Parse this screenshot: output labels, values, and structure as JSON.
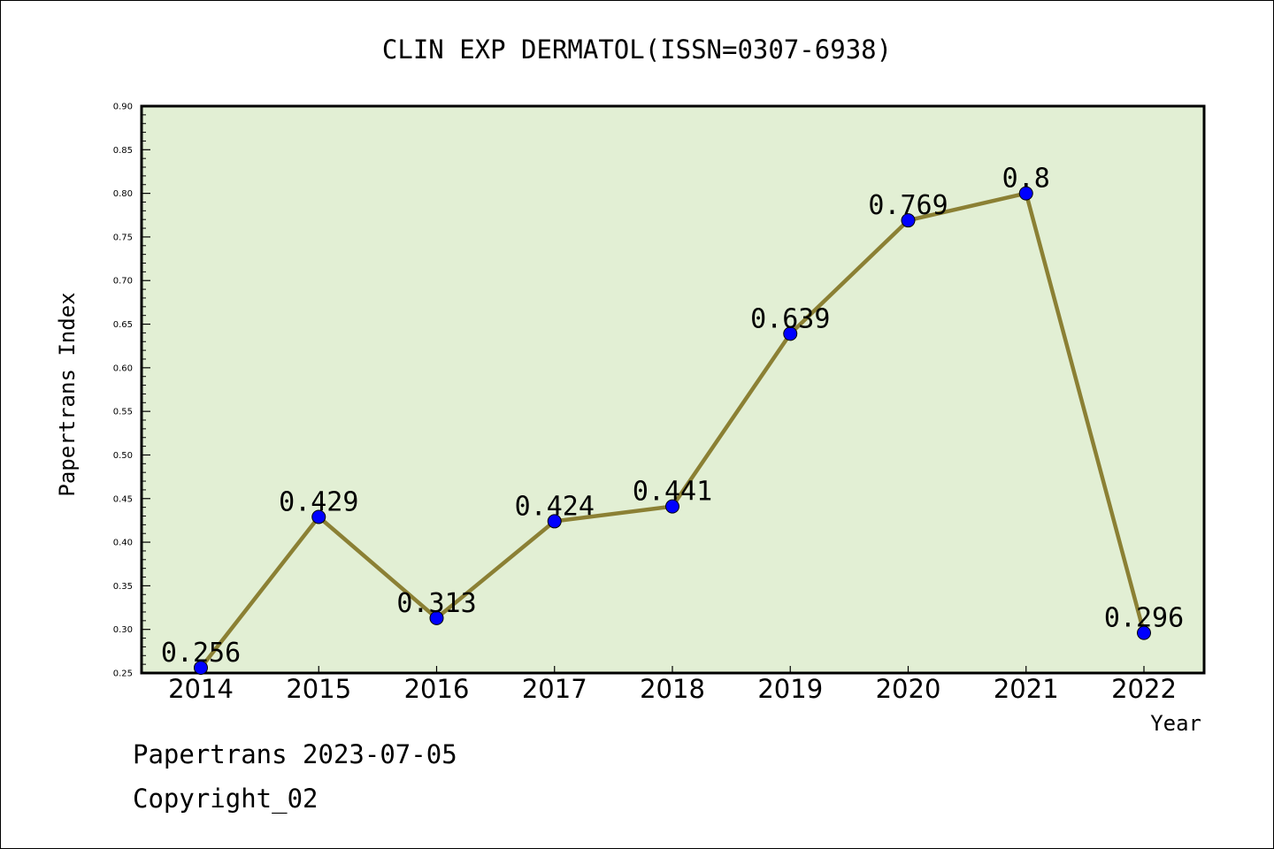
{
  "chart_data": {
    "type": "line",
    "title": "CLIN EXP DERMATOL(ISSN=0307-6938)",
    "xlabel": "Year",
    "ylabel": "Papertrans Index",
    "categories": [
      "2014",
      "2015",
      "2016",
      "2017",
      "2018",
      "2019",
      "2020",
      "2021",
      "2022"
    ],
    "values": [
      0.256,
      0.429,
      0.313,
      0.424,
      0.441,
      0.639,
      0.769,
      0.8,
      0.296
    ],
    "data_labels": [
      "0.256",
      "0.429",
      "0.313",
      "0.424",
      "0.441",
      "0.639",
      "0.769",
      "0.8",
      "0.296"
    ],
    "ylim": [
      0.25,
      0.9
    ],
    "yticks": [
      "0.25",
      "0.30",
      "0.35",
      "0.40",
      "0.45",
      "0.50",
      "0.55",
      "0.60",
      "0.65",
      "0.70",
      "0.75",
      "0.80",
      "0.85",
      "0.90"
    ],
    "grid": false,
    "legend": "none",
    "colors": {
      "plot_background": "#e2efd4",
      "line": "#8b8034",
      "marker": "#0000ff",
      "marker_edge": "#000000"
    }
  },
  "footer": {
    "date_line": "Papertrans 2023-07-05",
    "copyright": "Copyright_02"
  }
}
